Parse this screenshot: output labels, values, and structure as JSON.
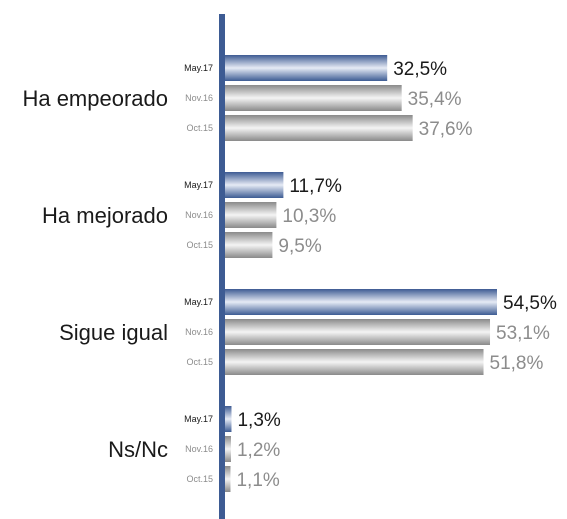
{
  "chart_data": {
    "type": "bar",
    "orientation": "horizontal",
    "categories": [
      "Ha empeorado",
      "Ha mejorado",
      "Sigue igual",
      "Ns/Nc"
    ],
    "series": [
      {
        "name": "May.17",
        "values": [
          32.5,
          11.7,
          54.5,
          1.3
        ],
        "labels": [
          "32,5%",
          "11,7%",
          "54,5%",
          "1,3%"
        ]
      },
      {
        "name": "Nov.16",
        "values": [
          35.4,
          10.3,
          53.1,
          1.2
        ],
        "labels": [
          "35,4%",
          "10,3%",
          "53,1%",
          "1,2%"
        ]
      },
      {
        "name": "Oct.15",
        "values": [
          37.6,
          9.5,
          51.8,
          1.1
        ],
        "labels": [
          "37,6%",
          "9,5%",
          "51,8%",
          "1,1%"
        ]
      }
    ],
    "xlim": [
      0,
      60
    ],
    "title": "",
    "xlabel": "",
    "ylabel": "",
    "grid": false,
    "legend": "none",
    "colors": {
      "axis": "#3d5b93",
      "current_bar_dark": "#3d5b93",
      "current_bar_light": "#e6ebf5",
      "previous_bar_dark": "#8a8a8a",
      "previous_bar_light": "#f4f4f4",
      "current_label": "#1a1a1a",
      "previous_label": "#8c8c8c"
    }
  }
}
